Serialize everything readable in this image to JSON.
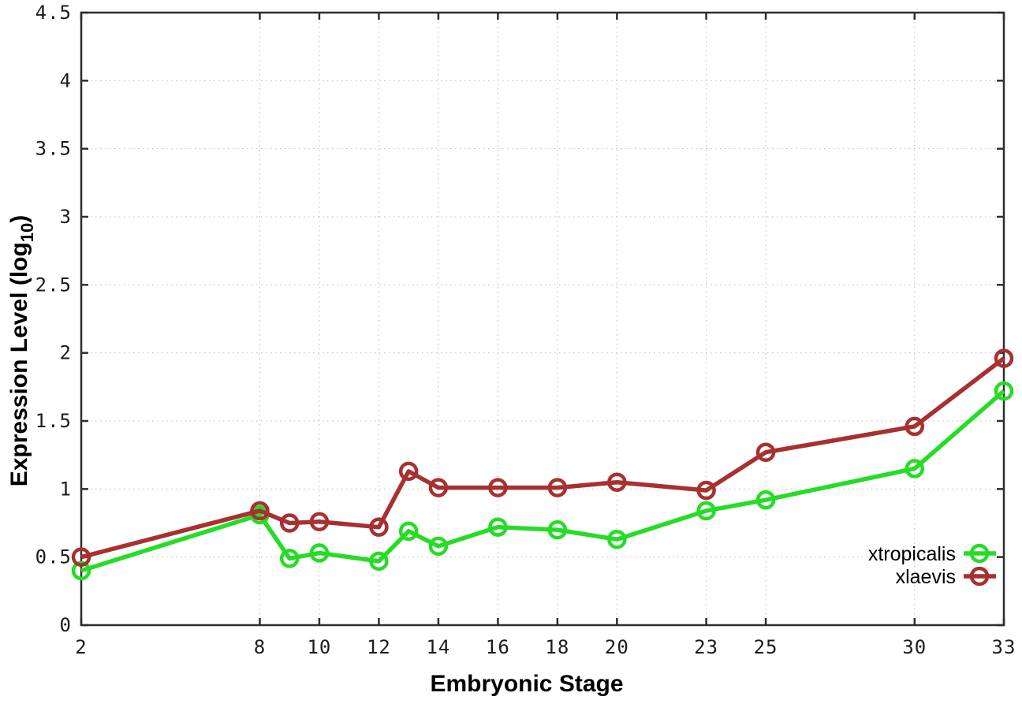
{
  "chart_data": {
    "type": "line",
    "title": "",
    "xlabel": "Embryonic Stage",
    "ylabel": "Expression Level (log10)",
    "ylabel_parts": {
      "main": "Expression Level (log",
      "sub": "10",
      "end": ")"
    },
    "xlim": [
      2,
      33
    ],
    "ylim": [
      0,
      4.5
    ],
    "x_ticks": [
      2,
      8,
      10,
      12,
      14,
      16,
      18,
      20,
      23,
      25,
      30,
      33
    ],
    "x_tick_labels": [
      "2",
      "8",
      "10",
      "12",
      "14",
      "16",
      "18",
      "20",
      "23",
      "25",
      "30",
      "33"
    ],
    "y_ticks": [
      0,
      0.5,
      1,
      1.5,
      2,
      2.5,
      3,
      3.5,
      4,
      4.5
    ],
    "y_tick_labels": [
      "0",
      "0.5",
      "1",
      "1.5",
      "2",
      "2.5",
      "3",
      "3.5",
      "4",
      "4.5"
    ],
    "grid": true,
    "legend_position": "inside-right-bottom",
    "marker": "open-circle",
    "x": [
      2,
      8,
      9,
      10,
      12,
      13,
      14,
      16,
      18,
      20,
      23,
      25,
      30,
      33
    ],
    "series": [
      {
        "name": "xtropicalis",
        "color": "#26dc26",
        "values": [
          0.4,
          0.81,
          0.49,
          0.53,
          0.47,
          0.69,
          0.58,
          0.72,
          0.7,
          0.63,
          0.84,
          0.92,
          1.15,
          1.72
        ]
      },
      {
        "name": "xlaevis",
        "color": "#a93030",
        "values": [
          0.5,
          0.84,
          0.75,
          0.76,
          0.72,
          1.13,
          1.01,
          1.01,
          1.01,
          1.05,
          0.99,
          1.27,
          1.46,
          1.96
        ]
      }
    ]
  }
}
